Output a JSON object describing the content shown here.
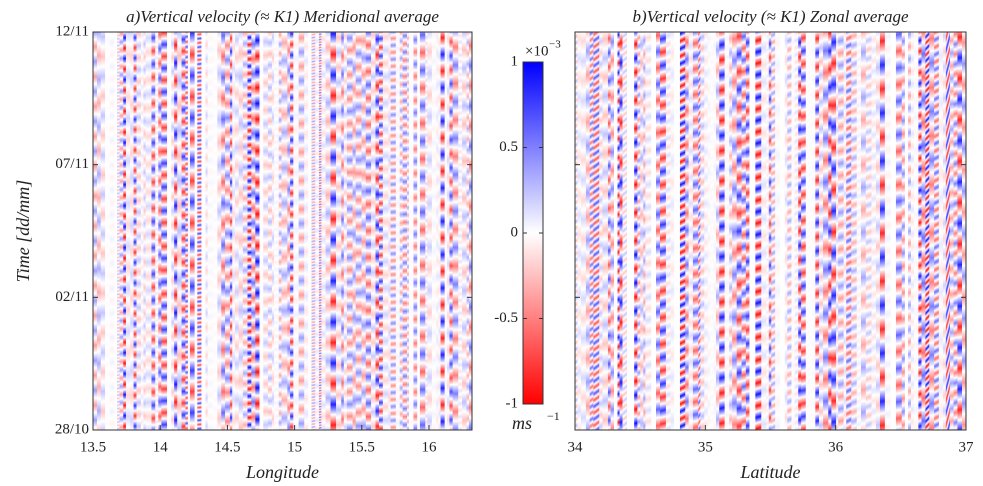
{
  "chart_data": [
    {
      "type": "heatmap",
      "title": "a)Vertical velocity (≈ K1) Meridional average",
      "x_label": "Longitude",
      "y_label": "Time [dd/mm]",
      "xlim": [
        13.5,
        16.32
      ],
      "xticks": [
        13.5,
        14,
        14.5,
        15,
        15.5,
        16
      ],
      "ylim": [
        "28/10",
        "12/11"
      ],
      "yticks": [
        "28/10",
        "02/11",
        "07/11",
        "12/11"
      ]
    },
    {
      "type": "heatmap",
      "title": "b)Vertical velocity (≈ K1) Zonal average",
      "x_label": "Latitude",
      "xlim": [
        34,
        37
      ],
      "xticks": [
        34,
        35,
        36,
        37
      ],
      "ylim": [
        "28/10",
        "12/11"
      ],
      "yticks": [
        "28/10",
        "02/11",
        "07/11",
        "12/11"
      ]
    },
    {
      "type": "colorbar",
      "clim": [
        -1,
        1
      ],
      "ticks": [
        -1,
        -0.5,
        0,
        0.5,
        1
      ],
      "colormap": [
        "#ff0000",
        "#ffffff",
        "#0000ff"
      ],
      "multiplier": "×10",
      "multiplier_exponent": "−3",
      "unit": "ms",
      "unit_exponent": "−1"
    }
  ]
}
